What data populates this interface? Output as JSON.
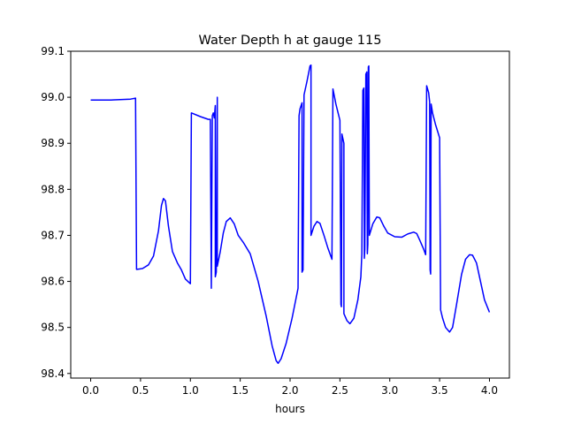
{
  "chart_data": {
    "type": "line",
    "title": "Water Depth h at gauge 115",
    "xlabel": "hours",
    "ylabel": "",
    "xlim": [
      -0.2,
      4.2
    ],
    "ylim": [
      98.39,
      99.1
    ],
    "xticks": [
      0.0,
      0.5,
      1.0,
      1.5,
      2.0,
      2.5,
      3.0,
      3.5,
      4.0
    ],
    "xtick_labels": [
      "0.0",
      "0.5",
      "1.0",
      "1.5",
      "2.0",
      "2.5",
      "3.0",
      "3.5",
      "4.0"
    ],
    "yticks": [
      98.4,
      98.5,
      98.6,
      98.7,
      98.8,
      98.9,
      99.0,
      99.1
    ],
    "ytick_labels": [
      "98.4",
      "98.5",
      "98.6",
      "98.7",
      "98.8",
      "98.9",
      "99.0",
      "99.1"
    ],
    "grid": false,
    "series": [
      {
        "color": "#0000ff",
        "points": [
          [
            0.0,
            98.994
          ],
          [
            0.2,
            98.994
          ],
          [
            0.4,
            98.996
          ],
          [
            0.45,
            98.998
          ],
          [
            0.46,
            98.626
          ],
          [
            0.52,
            98.628
          ],
          [
            0.58,
            98.636
          ],
          [
            0.63,
            98.655
          ],
          [
            0.68,
            98.71
          ],
          [
            0.71,
            98.765
          ],
          [
            0.73,
            98.78
          ],
          [
            0.75,
            98.775
          ],
          [
            0.78,
            98.72
          ],
          [
            0.82,
            98.665
          ],
          [
            0.87,
            98.64
          ],
          [
            0.91,
            98.625
          ],
          [
            0.95,
            98.605
          ],
          [
            1.0,
            98.595
          ],
          [
            1.01,
            98.966
          ],
          [
            1.1,
            98.958
          ],
          [
            1.18,
            98.952
          ],
          [
            1.2,
            98.952
          ],
          [
            1.21,
            98.585
          ],
          [
            1.22,
            98.96
          ],
          [
            1.23,
            98.966
          ],
          [
            1.24,
            98.955
          ],
          [
            1.25,
            98.982
          ],
          [
            1.25,
            98.61
          ],
          [
            1.26,
            98.62
          ],
          [
            1.27,
            99.0
          ],
          [
            1.27,
            98.633
          ],
          [
            1.3,
            98.665
          ],
          [
            1.33,
            98.705
          ],
          [
            1.36,
            98.73
          ],
          [
            1.4,
            98.738
          ],
          [
            1.44,
            98.725
          ],
          [
            1.48,
            98.7
          ],
          [
            1.53,
            98.685
          ],
          [
            1.6,
            98.66
          ],
          [
            1.68,
            98.6
          ],
          [
            1.76,
            98.525
          ],
          [
            1.82,
            98.46
          ],
          [
            1.86,
            98.428
          ],
          [
            1.88,
            98.422
          ],
          [
            1.91,
            98.432
          ],
          [
            1.96,
            98.465
          ],
          [
            2.02,
            98.52
          ],
          [
            2.08,
            98.585
          ],
          [
            2.09,
            98.96
          ],
          [
            2.1,
            98.975
          ],
          [
            2.12,
            98.988
          ],
          [
            2.12,
            98.62
          ],
          [
            2.13,
            98.625
          ],
          [
            2.14,
            99.005
          ],
          [
            2.17,
            99.035
          ],
          [
            2.2,
            99.068
          ],
          [
            2.21,
            99.07
          ],
          [
            2.21,
            98.7
          ],
          [
            2.24,
            98.72
          ],
          [
            2.27,
            98.73
          ],
          [
            2.3,
            98.726
          ],
          [
            2.34,
            98.7
          ],
          [
            2.38,
            98.672
          ],
          [
            2.42,
            98.648
          ],
          [
            2.43,
            99.018
          ],
          [
            2.46,
            98.985
          ],
          [
            2.5,
            98.95
          ],
          [
            2.51,
            98.55
          ],
          [
            2.515,
            98.545
          ],
          [
            2.52,
            98.92
          ],
          [
            2.53,
            98.91
          ],
          [
            2.54,
            98.9
          ],
          [
            2.54,
            98.53
          ],
          [
            2.57,
            98.515
          ],
          [
            2.6,
            98.508
          ],
          [
            2.64,
            98.52
          ],
          [
            2.68,
            98.56
          ],
          [
            2.71,
            98.61
          ],
          [
            2.72,
            98.66
          ],
          [
            2.73,
            99.015
          ],
          [
            2.74,
            99.02
          ],
          [
            2.745,
            98.65
          ],
          [
            2.75,
            98.67
          ],
          [
            2.76,
            99.05
          ],
          [
            2.77,
            99.055
          ],
          [
            2.775,
            98.66
          ],
          [
            2.78,
            98.68
          ],
          [
            2.785,
            99.066
          ],
          [
            2.79,
            99.068
          ],
          [
            2.795,
            98.7
          ],
          [
            2.83,
            98.725
          ],
          [
            2.87,
            98.74
          ],
          [
            2.9,
            98.738
          ],
          [
            2.94,
            98.72
          ],
          [
            2.98,
            98.705
          ],
          [
            3.05,
            98.697
          ],
          [
            3.12,
            98.696
          ],
          [
            3.18,
            98.703
          ],
          [
            3.24,
            98.707
          ],
          [
            3.27,
            98.704
          ],
          [
            3.3,
            98.69
          ],
          [
            3.34,
            98.67
          ],
          [
            3.36,
            98.658
          ],
          [
            3.37,
            99.025
          ],
          [
            3.39,
            99.01
          ],
          [
            3.4,
            98.99
          ],
          [
            3.405,
            98.625
          ],
          [
            3.41,
            98.616
          ],
          [
            3.415,
            98.985
          ],
          [
            3.43,
            98.965
          ],
          [
            3.46,
            98.94
          ],
          [
            3.5,
            98.912
          ],
          [
            3.51,
            98.538
          ],
          [
            3.53,
            98.52
          ],
          [
            3.56,
            98.5
          ],
          [
            3.6,
            98.49
          ],
          [
            3.63,
            98.5
          ],
          [
            3.67,
            98.55
          ],
          [
            3.72,
            98.615
          ],
          [
            3.76,
            98.648
          ],
          [
            3.8,
            98.658
          ],
          [
            3.83,
            98.657
          ],
          [
            3.87,
            98.64
          ],
          [
            3.91,
            98.6
          ],
          [
            3.95,
            98.56
          ],
          [
            4.0,
            98.533
          ]
        ]
      }
    ]
  }
}
